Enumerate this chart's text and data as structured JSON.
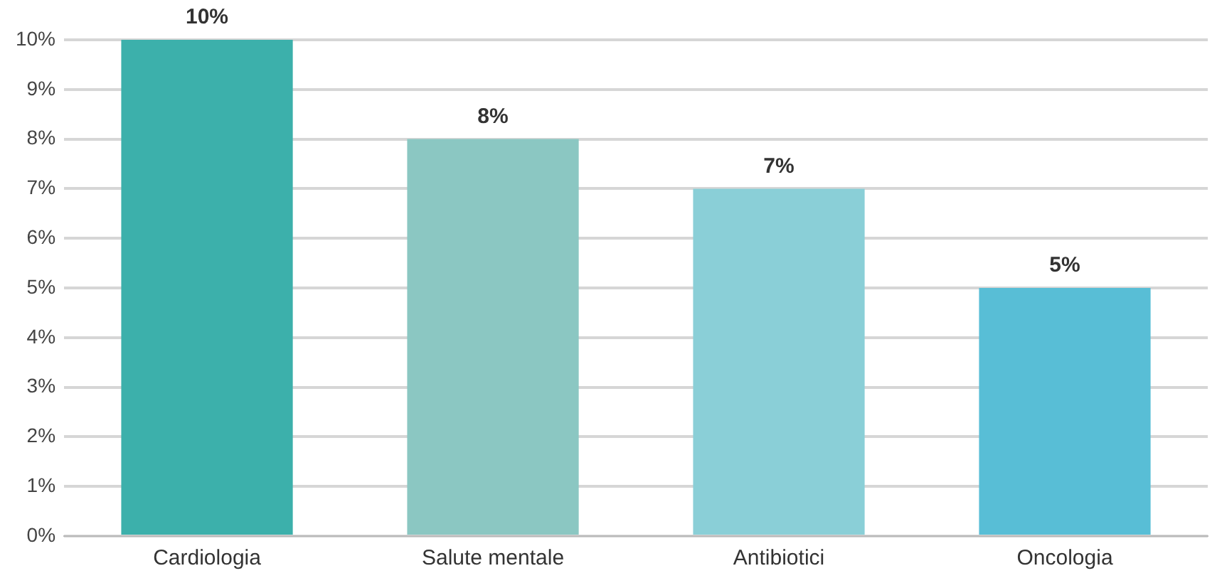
{
  "chart_data": {
    "type": "bar",
    "categories": [
      "Cardiologia",
      "Salute mentale",
      "Antibiotici",
      "Oncologia"
    ],
    "values": [
      10,
      8,
      7,
      5
    ],
    "colors": [
      "#3cb0ab",
      "#8bc7c2",
      "#8acfd7",
      "#58bed6"
    ],
    "value_labels": [
      "10%",
      "8%",
      "7%",
      "5%"
    ],
    "ylim": [
      0,
      10
    ],
    "yticks": [
      {
        "value": 0,
        "label": "0%"
      },
      {
        "value": 1,
        "label": "1%"
      },
      {
        "value": 2,
        "label": "2%"
      },
      {
        "value": 3,
        "label": "3%"
      },
      {
        "value": 4,
        "label": "4%"
      },
      {
        "value": 5,
        "label": "5%"
      },
      {
        "value": 6,
        "label": "6%"
      },
      {
        "value": 7,
        "label": "7%"
      },
      {
        "value": 8,
        "label": "8%"
      },
      {
        "value": 9,
        "label": "9%"
      },
      {
        "value": 10,
        "label": "10%"
      }
    ],
    "grid": "y",
    "legend": false
  }
}
